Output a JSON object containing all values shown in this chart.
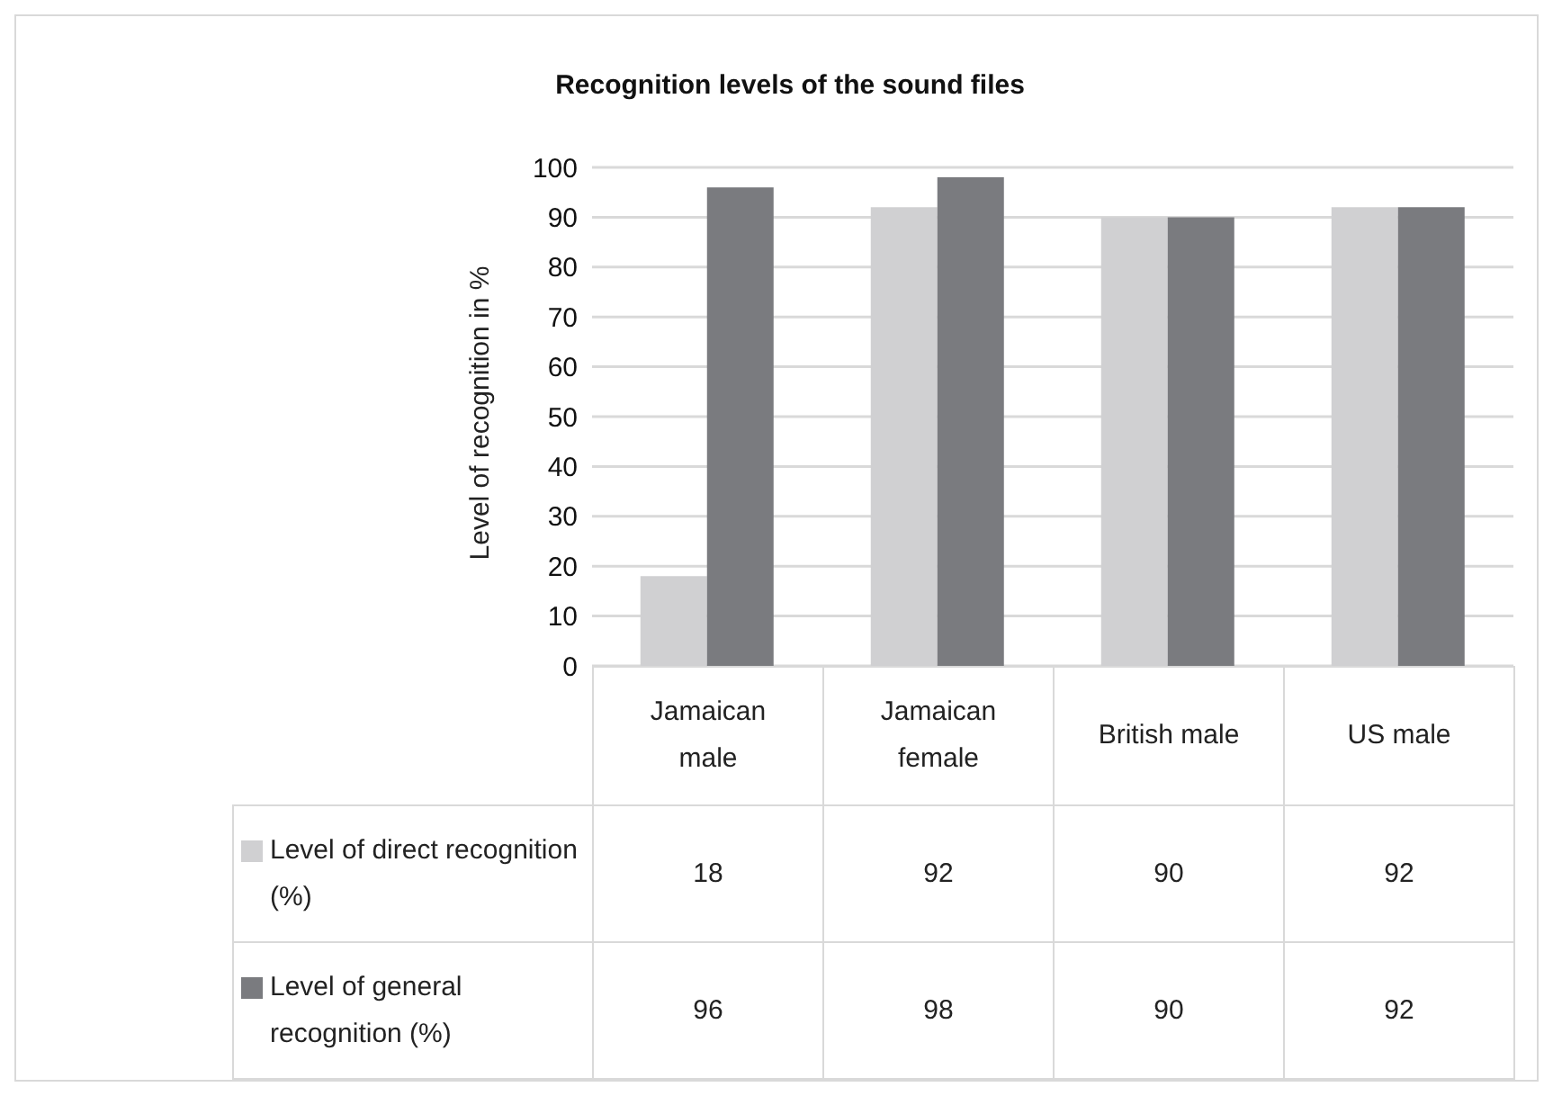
{
  "chart_data": {
    "type": "bar",
    "title": "Recognition levels of the sound files",
    "ylabel": "Level of recognition in %",
    "categories": [
      "Jamaican male",
      "Jamaican female",
      "British male",
      "US male"
    ],
    "series": [
      {
        "name": "Level of direct recognition (%)",
        "color": "#d0d0d2",
        "values": [
          18,
          92,
          90,
          92
        ]
      },
      {
        "name": "Level of general recognition (%)",
        "color": "#7a7b7f",
        "values": [
          96,
          98,
          90,
          92
        ]
      }
    ],
    "ylim": [
      0,
      100
    ],
    "yticks": [
      0,
      10,
      20,
      30,
      40,
      50,
      60,
      70,
      80,
      90,
      100
    ],
    "grid": "y",
    "legend": "bottom left",
    "data_labels": true
  }
}
